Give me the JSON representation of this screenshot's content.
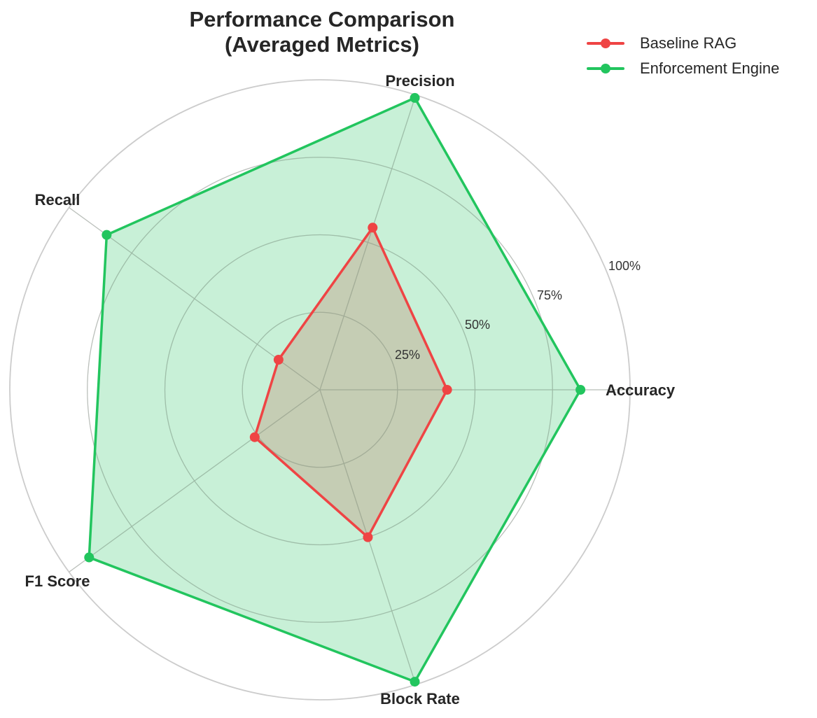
{
  "chart_data": {
    "type": "radar",
    "title": "Performance Comparison\n(Averaged Metrics)",
    "title_lines": [
      "Performance Comparison",
      "(Averaged Metrics)"
    ],
    "categories": [
      "Accuracy",
      "Precision",
      "Recall",
      "F1 Score",
      "Block Rate"
    ],
    "series": [
      {
        "name": "Baseline RAG",
        "color": "#ef4444",
        "values": [
          0.41,
          0.55,
          0.165,
          0.26,
          0.5
        ]
      },
      {
        "name": "Enforcement Engine",
        "color": "#22c55e",
        "values": [
          0.84,
          0.99,
          0.85,
          0.92,
          0.99
        ]
      }
    ],
    "radial_ticks": [
      0.25,
      0.5,
      0.75,
      1.0
    ],
    "radial_tick_labels": [
      "25%",
      "50%",
      "75%",
      "100%"
    ],
    "rlim": [
      0,
      1
    ],
    "grid": true,
    "legend_position": "upper right (outside)"
  },
  "legend": {
    "items": [
      {
        "label": "Baseline RAG",
        "color": "#ef4444"
      },
      {
        "label": "Enforcement Engine",
        "color": "#22c55e"
      }
    ]
  }
}
